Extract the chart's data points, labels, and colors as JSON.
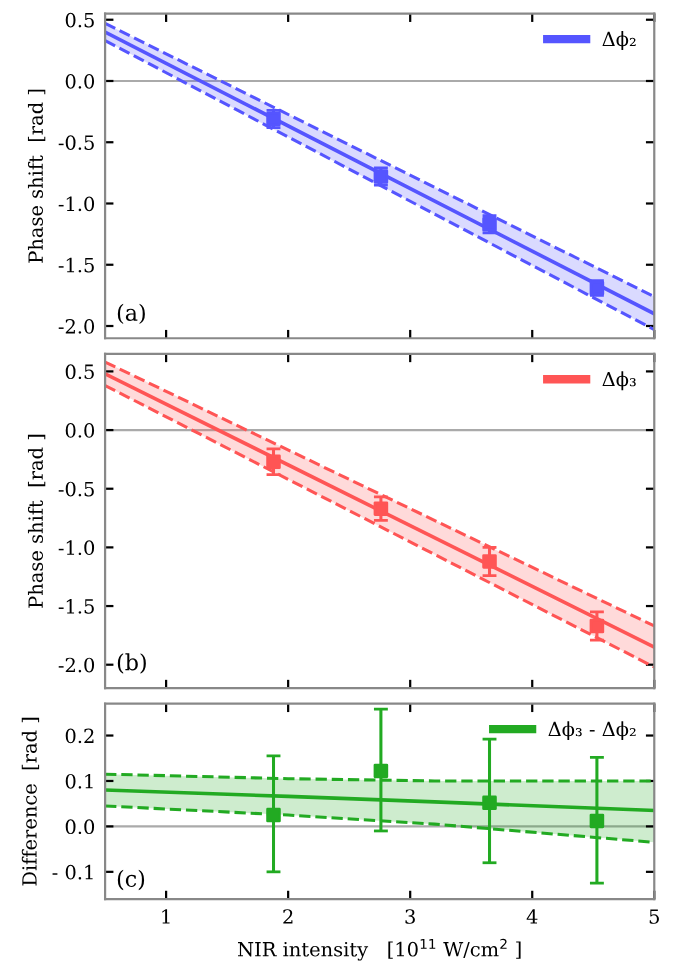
{
  "chart_data": [
    {
      "type": "line",
      "ylabel": "Phase shift  [rad ]",
      "annotations": [
        "(a)"
      ],
      "xlim": [
        0.5,
        5
      ],
      "xticks": [
        1,
        2,
        3,
        4,
        5
      ],
      "ylim": [
        -2.1,
        0.55
      ],
      "yticks": [
        {
          "value": 0.5,
          "label": "0.5"
        },
        {
          "value": 0.0,
          "label": "0.0"
        },
        {
          "value": -0.5,
          "label": "-0.5"
        },
        {
          "value": -1.0,
          "label": "-1.0"
        },
        {
          "value": -1.5,
          "label": "-1.5"
        },
        {
          "value": -2.0,
          "label": "-2.0"
        }
      ],
      "tick_labels": "y",
      "legend": "top right",
      "grid": false,
      "ref_lines": [
        {
          "axis": "y",
          "value": 0,
          "color": "#aaaaaa"
        }
      ],
      "series": [
        {
          "name": "Δϕ₂",
          "color": "#5555ff",
          "x": [
            0.5,
            5
          ],
          "values": [
            0.4,
            -1.9
          ],
          "lower": [
            0.33,
            -2.03
          ],
          "upper": [
            0.47,
            -1.76
          ]
        },
        {
          "color": "#5555ff",
          "line_style": "dashed",
          "x": [
            0.5,
            5
          ],
          "values": [
            0.33,
            -2.03
          ]
        },
        {
          "color": "#5555ff",
          "line_style": "dashed",
          "x": [
            0.5,
            5
          ],
          "values": [
            0.47,
            -1.76
          ]
        },
        {
          "type": "scatter",
          "color": "#5555ff",
          "marker": "square",
          "x": [
            1.88,
            2.76,
            3.65,
            4.53
          ],
          "values": [
            -0.31,
            -0.78,
            -1.17,
            -1.69
          ],
          "errors": [
            0.07,
            0.07,
            0.07,
            0.06
          ]
        }
      ]
    },
    {
      "type": "line",
      "ylabel": "Phase shift  [rad ]",
      "annotations": [
        "(b)"
      ],
      "xlim": [
        0.5,
        5
      ],
      "xticks": [
        1,
        2,
        3,
        4,
        5
      ],
      "ylim": [
        -2.2,
        0.65
      ],
      "yticks": [
        {
          "value": 0.5,
          "label": "0.5"
        },
        {
          "value": 0.0,
          "label": "0.0"
        },
        {
          "value": -0.5,
          "label": "-0.5"
        },
        {
          "value": -1.0,
          "label": "-1.0"
        },
        {
          "value": -1.5,
          "label": "-1.5"
        },
        {
          "value": -2.0,
          "label": "-2.0"
        }
      ],
      "tick_labels": "y",
      "legend": "top right",
      "grid": false,
      "ref_lines": [
        {
          "axis": "y",
          "value": 0,
          "color": "#aaaaaa"
        }
      ],
      "series": [
        {
          "name": "Δϕ₃",
          "color": "#ff5555",
          "x": [
            0.5,
            5
          ],
          "values": [
            0.48,
            -1.85
          ],
          "lower": [
            0.38,
            -2.02
          ],
          "upper": [
            0.58,
            -1.67
          ]
        },
        {
          "color": "#ff5555",
          "line_style": "dashed",
          "x": [
            0.5,
            5
          ],
          "values": [
            0.38,
            -2.02
          ]
        },
        {
          "color": "#ff5555",
          "line_style": "dashed",
          "x": [
            0.5,
            5
          ],
          "values": [
            0.58,
            -1.67
          ]
        },
        {
          "type": "scatter",
          "color": "#ff5555",
          "marker": "square",
          "x": [
            1.88,
            2.76,
            3.65,
            4.53
          ],
          "values": [
            -0.27,
            -0.67,
            -1.12,
            -1.67
          ],
          "errors": [
            0.11,
            0.1,
            0.12,
            0.12
          ]
        }
      ]
    },
    {
      "type": "line",
      "ylabel": "Difference  [rad ]",
      "xlabel": "NIR intensity   [10$^{11}$ W/cm$^{2}$ ]",
      "annotations": [
        "(c)"
      ],
      "xlim": [
        0.5,
        5
      ],
      "xticks": [
        1,
        2,
        3,
        4,
        5
      ],
      "ylim": [
        -0.16,
        0.27
      ],
      "yticks": [
        {
          "value": 0.2,
          "label": "0.2"
        },
        {
          "value": 0.1,
          "label": "0.1"
        },
        {
          "value": 0.0,
          "label": "0.0"
        },
        {
          "value": -0.1,
          "label": "- 0.1"
        }
      ],
      "legend": "top right",
      "grid": false,
      "ref_lines": [
        {
          "axis": "y",
          "value": 0,
          "color": "#aaaaaa"
        }
      ],
      "series": [
        {
          "name": "Δϕ₃ - Δϕ₂",
          "color": "#22aa22",
          "x": [
            0.5,
            2,
            3.2,
            5
          ],
          "values": [
            0.08,
            0.066,
            0.054,
            0.035
          ],
          "lower": [
            0.045,
            0.025,
            0.005,
            -0.035
          ],
          "upper": [
            0.115,
            0.105,
            0.1,
            0.1
          ]
        },
        {
          "color": "#22aa22",
          "line_style": "dashed",
          "x": [
            0.5,
            2,
            3.2,
            5
          ],
          "values": [
            0.045,
            0.025,
            0.005,
            -0.035
          ]
        },
        {
          "color": "#22aa22",
          "line_style": "dashed",
          "x": [
            0.5,
            2,
            3.2,
            5
          ],
          "values": [
            0.115,
            0.105,
            0.1,
            0.1
          ]
        },
        {
          "type": "scatter",
          "color": "#22aa22",
          "marker": "square",
          "x": [
            1.88,
            2.76,
            3.65,
            4.53
          ],
          "values": [
            0.025,
            0.122,
            0.052,
            0.012
          ],
          "errors": [
            [
              -0.1,
              0.155
            ],
            [
              -0.01,
              0.258
            ],
            [
              -0.08,
              0.192
            ],
            [
              -0.125,
              0.152
            ]
          ]
        }
      ]
    }
  ]
}
